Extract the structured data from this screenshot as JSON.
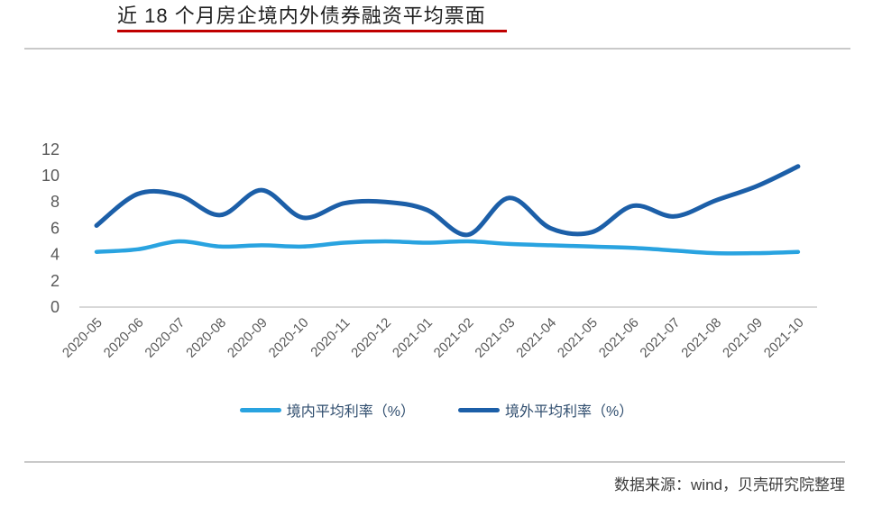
{
  "title": "近 18 个月房企境内外债券融资平均票面",
  "source": "数据来源：wind，贝壳研究院整理",
  "styles": {
    "title_underline_color": "#c00000",
    "divider_color": "#c9c9c9",
    "legend_text_color": "#2f4d6e"
  },
  "chart_data": {
    "type": "line",
    "title": "近 18 个月房企境内外债券融资平均票面",
    "categories": [
      "2020-05",
      "2020-06",
      "2020-07",
      "2020-08",
      "2020-09",
      "2020-10",
      "2020-11",
      "2020-12",
      "2021-01",
      "2021-02",
      "2021-03",
      "2021-04",
      "2021-05",
      "2021-06",
      "2021-07",
      "2021-08",
      "2021-09",
      "2021-10"
    ],
    "series": [
      {
        "name": "境内平均利率（%）",
        "color": "#29a3e0",
        "values": [
          4.2,
          4.4,
          5.0,
          4.6,
          4.7,
          4.6,
          4.9,
          5.0,
          4.9,
          5.0,
          4.8,
          4.7,
          4.6,
          4.5,
          4.3,
          4.1,
          4.1,
          4.2
        ]
      },
      {
        "name": "境外平均利率（%）",
        "color": "#1c5fa8",
        "values": [
          6.2,
          8.6,
          8.5,
          7.0,
          8.9,
          6.8,
          7.9,
          8.0,
          7.4,
          5.5,
          8.3,
          6.0,
          5.7,
          7.7,
          6.9,
          8.1,
          9.2,
          10.7
        ]
      }
    ],
    "xlabel": "",
    "ylabel": "",
    "ylim": [
      0,
      12
    ],
    "yticks": [
      0,
      2,
      4,
      6,
      8,
      10,
      12
    ],
    "grid": false,
    "legend_position": "bottom",
    "x_label_rotation": -45,
    "tick_color": "#595959",
    "axis_color": "#d8d8d8"
  }
}
